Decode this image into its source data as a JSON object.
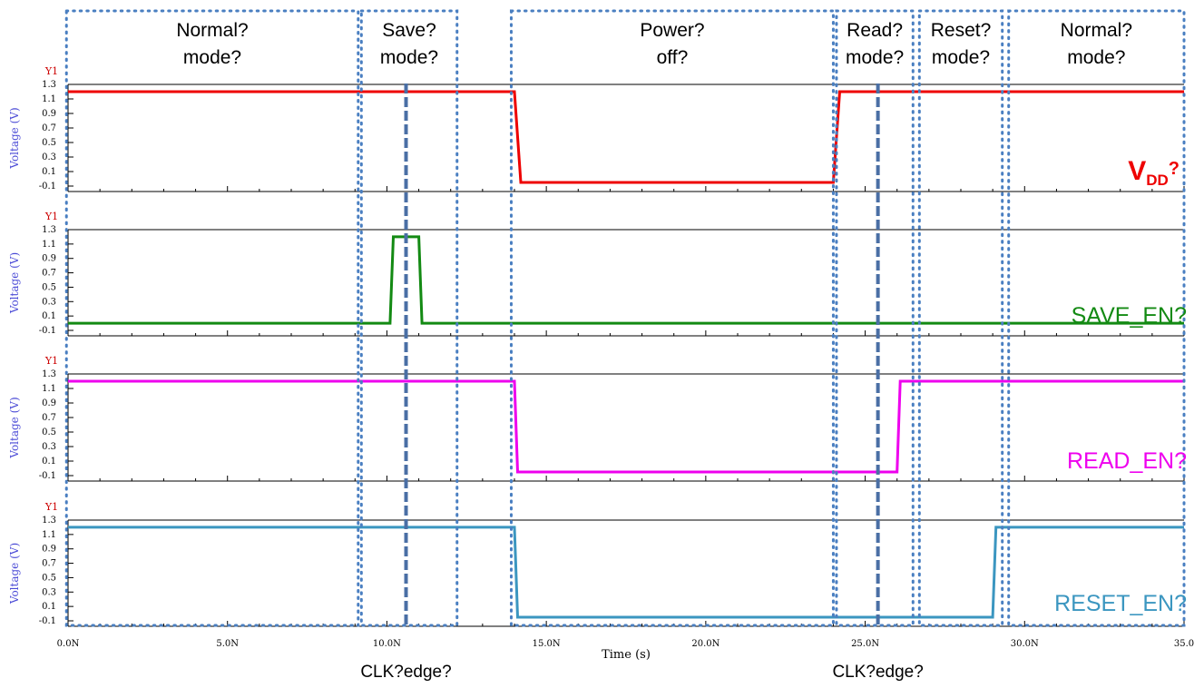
{
  "chart_data": {
    "type": "line",
    "x_axis": {
      "label": "Time (s)",
      "range": [
        0,
        35
      ],
      "ticks": [
        0,
        5,
        10,
        15,
        20,
        25,
        30,
        35
      ],
      "tick_labels": [
        "0.0N",
        "5.0N",
        "10.0N",
        "15.0N",
        "20.0N",
        "25.0N",
        "30.0N",
        "35.0"
      ]
    },
    "y_axis": {
      "label": "Voltage (V)",
      "range": [
        -0.1,
        1.3
      ],
      "ticks": [
        -0.1,
        0.1,
        0.3,
        0.5,
        0.7,
        0.9,
        1.1,
        1.3
      ],
      "tick_labels": [
        "-0.1",
        "0.1",
        "0.3",
        "0.5",
        "0.7",
        "0.9",
        "1.1",
        "1.3"
      ],
      "corner_label": "Y1"
    },
    "series": [
      {
        "name": "V",
        "name_sub": "DD",
        "name_suffix": "?",
        "color": "#ee0000",
        "points": [
          [
            0,
            1.2
          ],
          [
            14.0,
            1.2
          ],
          [
            14.2,
            -0.05
          ],
          [
            24.0,
            -0.05
          ],
          [
            24.2,
            1.2
          ],
          [
            35,
            1.2
          ]
        ]
      },
      {
        "name": "SAVE_EN?",
        "color": "#138a13",
        "points": [
          [
            0,
            0
          ],
          [
            10.1,
            0
          ],
          [
            10.2,
            1.2
          ],
          [
            11.0,
            1.2
          ],
          [
            11.1,
            0
          ],
          [
            35,
            0
          ]
        ]
      },
      {
        "name": "READ_EN?",
        "color": "#ee00ee",
        "points": [
          [
            0,
            1.2
          ],
          [
            14.0,
            1.2
          ],
          [
            14.1,
            -0.05
          ],
          [
            26.0,
            -0.05
          ],
          [
            26.1,
            1.2
          ],
          [
            35,
            1.2
          ]
        ]
      },
      {
        "name": "RESET_EN?",
        "color": "#3b96c0",
        "points": [
          [
            0,
            1.2
          ],
          [
            14.0,
            1.2
          ],
          [
            14.1,
            -0.05
          ],
          [
            29.0,
            -0.05
          ],
          [
            29.1,
            1.2
          ],
          [
            35,
            1.2
          ]
        ]
      }
    ],
    "modes": [
      {
        "line1": "Normal?",
        "line2": "mode?",
        "start": -0.05,
        "end": 9.1
      },
      {
        "line1": "Save?",
        "line2": "mode?",
        "start": 9.2,
        "end": 12.2
      },
      {
        "line1": "Power?",
        "line2": "off?",
        "start": 13.9,
        "end": 24.0
      },
      {
        "line1": "Read?",
        "line2": "mode?",
        "start": 24.1,
        "end": 26.5
      },
      {
        "line1": "Reset?",
        "line2": "mode?",
        "start": 26.7,
        "end": 29.3
      },
      {
        "line1": "Normal?",
        "line2": "mode?",
        "start": 29.5,
        "end": 35.0
      }
    ],
    "clk_edges": [
      {
        "label": "CLK?edge?",
        "x": 10.6
      },
      {
        "label": "CLK?edge?",
        "x": 25.4
      }
    ],
    "grid": false
  },
  "colors": {
    "axis": "#000000",
    "axis_text": "#4a4ad6",
    "corner_label": "#cc0000",
    "mode_box": "#4a7fc1",
    "clk_line": "#4a6fa5",
    "caption_text": "#000000"
  }
}
